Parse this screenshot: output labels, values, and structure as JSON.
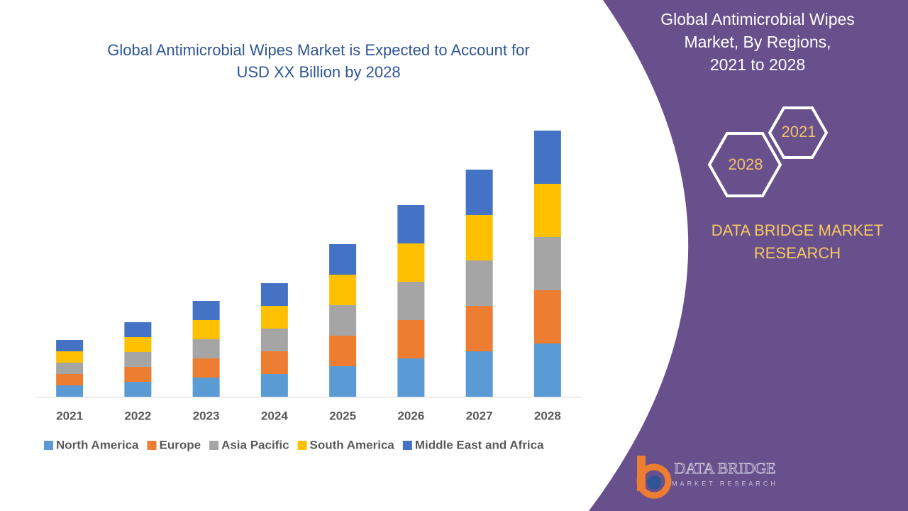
{
  "chart_data": {
    "type": "stacked-bar",
    "title": [
      "Global Antimicrobial Wipes Market is Expected to Account for",
      "USD XX Billion by 2028"
    ],
    "categories": [
      "2021",
      "2022",
      "2023",
      "2024",
      "2025",
      "2026",
      "2027",
      "2028"
    ],
    "series": [
      {
        "name": "North America",
        "color": "#5b9bd5",
        "values": [
          1.6,
          2.1,
          2.7,
          3.2,
          4.3,
          5.4,
          6.4,
          7.5
        ]
      },
      {
        "name": "Europe",
        "color": "#ed7d31",
        "values": [
          1.6,
          2.1,
          2.7,
          3.2,
          4.3,
          5.4,
          6.4,
          7.5
        ]
      },
      {
        "name": "Asia Pacific",
        "color": "#a5a5a5",
        "values": [
          1.6,
          2.1,
          2.7,
          3.2,
          4.3,
          5.4,
          6.4,
          7.5
        ]
      },
      {
        "name": "South America",
        "color": "#ffc000",
        "values": [
          1.6,
          2.1,
          2.7,
          3.2,
          4.3,
          5.4,
          6.4,
          7.5
        ]
      },
      {
        "name": "Middle East and Africa",
        "color": "#4472c4",
        "values": [
          1.6,
          2.1,
          2.7,
          3.2,
          4.3,
          5.4,
          6.4,
          7.5
        ]
      }
    ],
    "legend": "bottom"
  },
  "panel": {
    "title": [
      "Global Antimicrobial Wipes",
      "Market, By Regions,",
      "2021 to 2028"
    ],
    "badges": [
      "2021",
      "2028"
    ],
    "brand": [
      "DATA BRIDGE MARKET",
      "RESEARCH"
    ]
  },
  "logo": {
    "name": "DATA BRIDGE",
    "tagline": "MARKET RESEARCH"
  }
}
